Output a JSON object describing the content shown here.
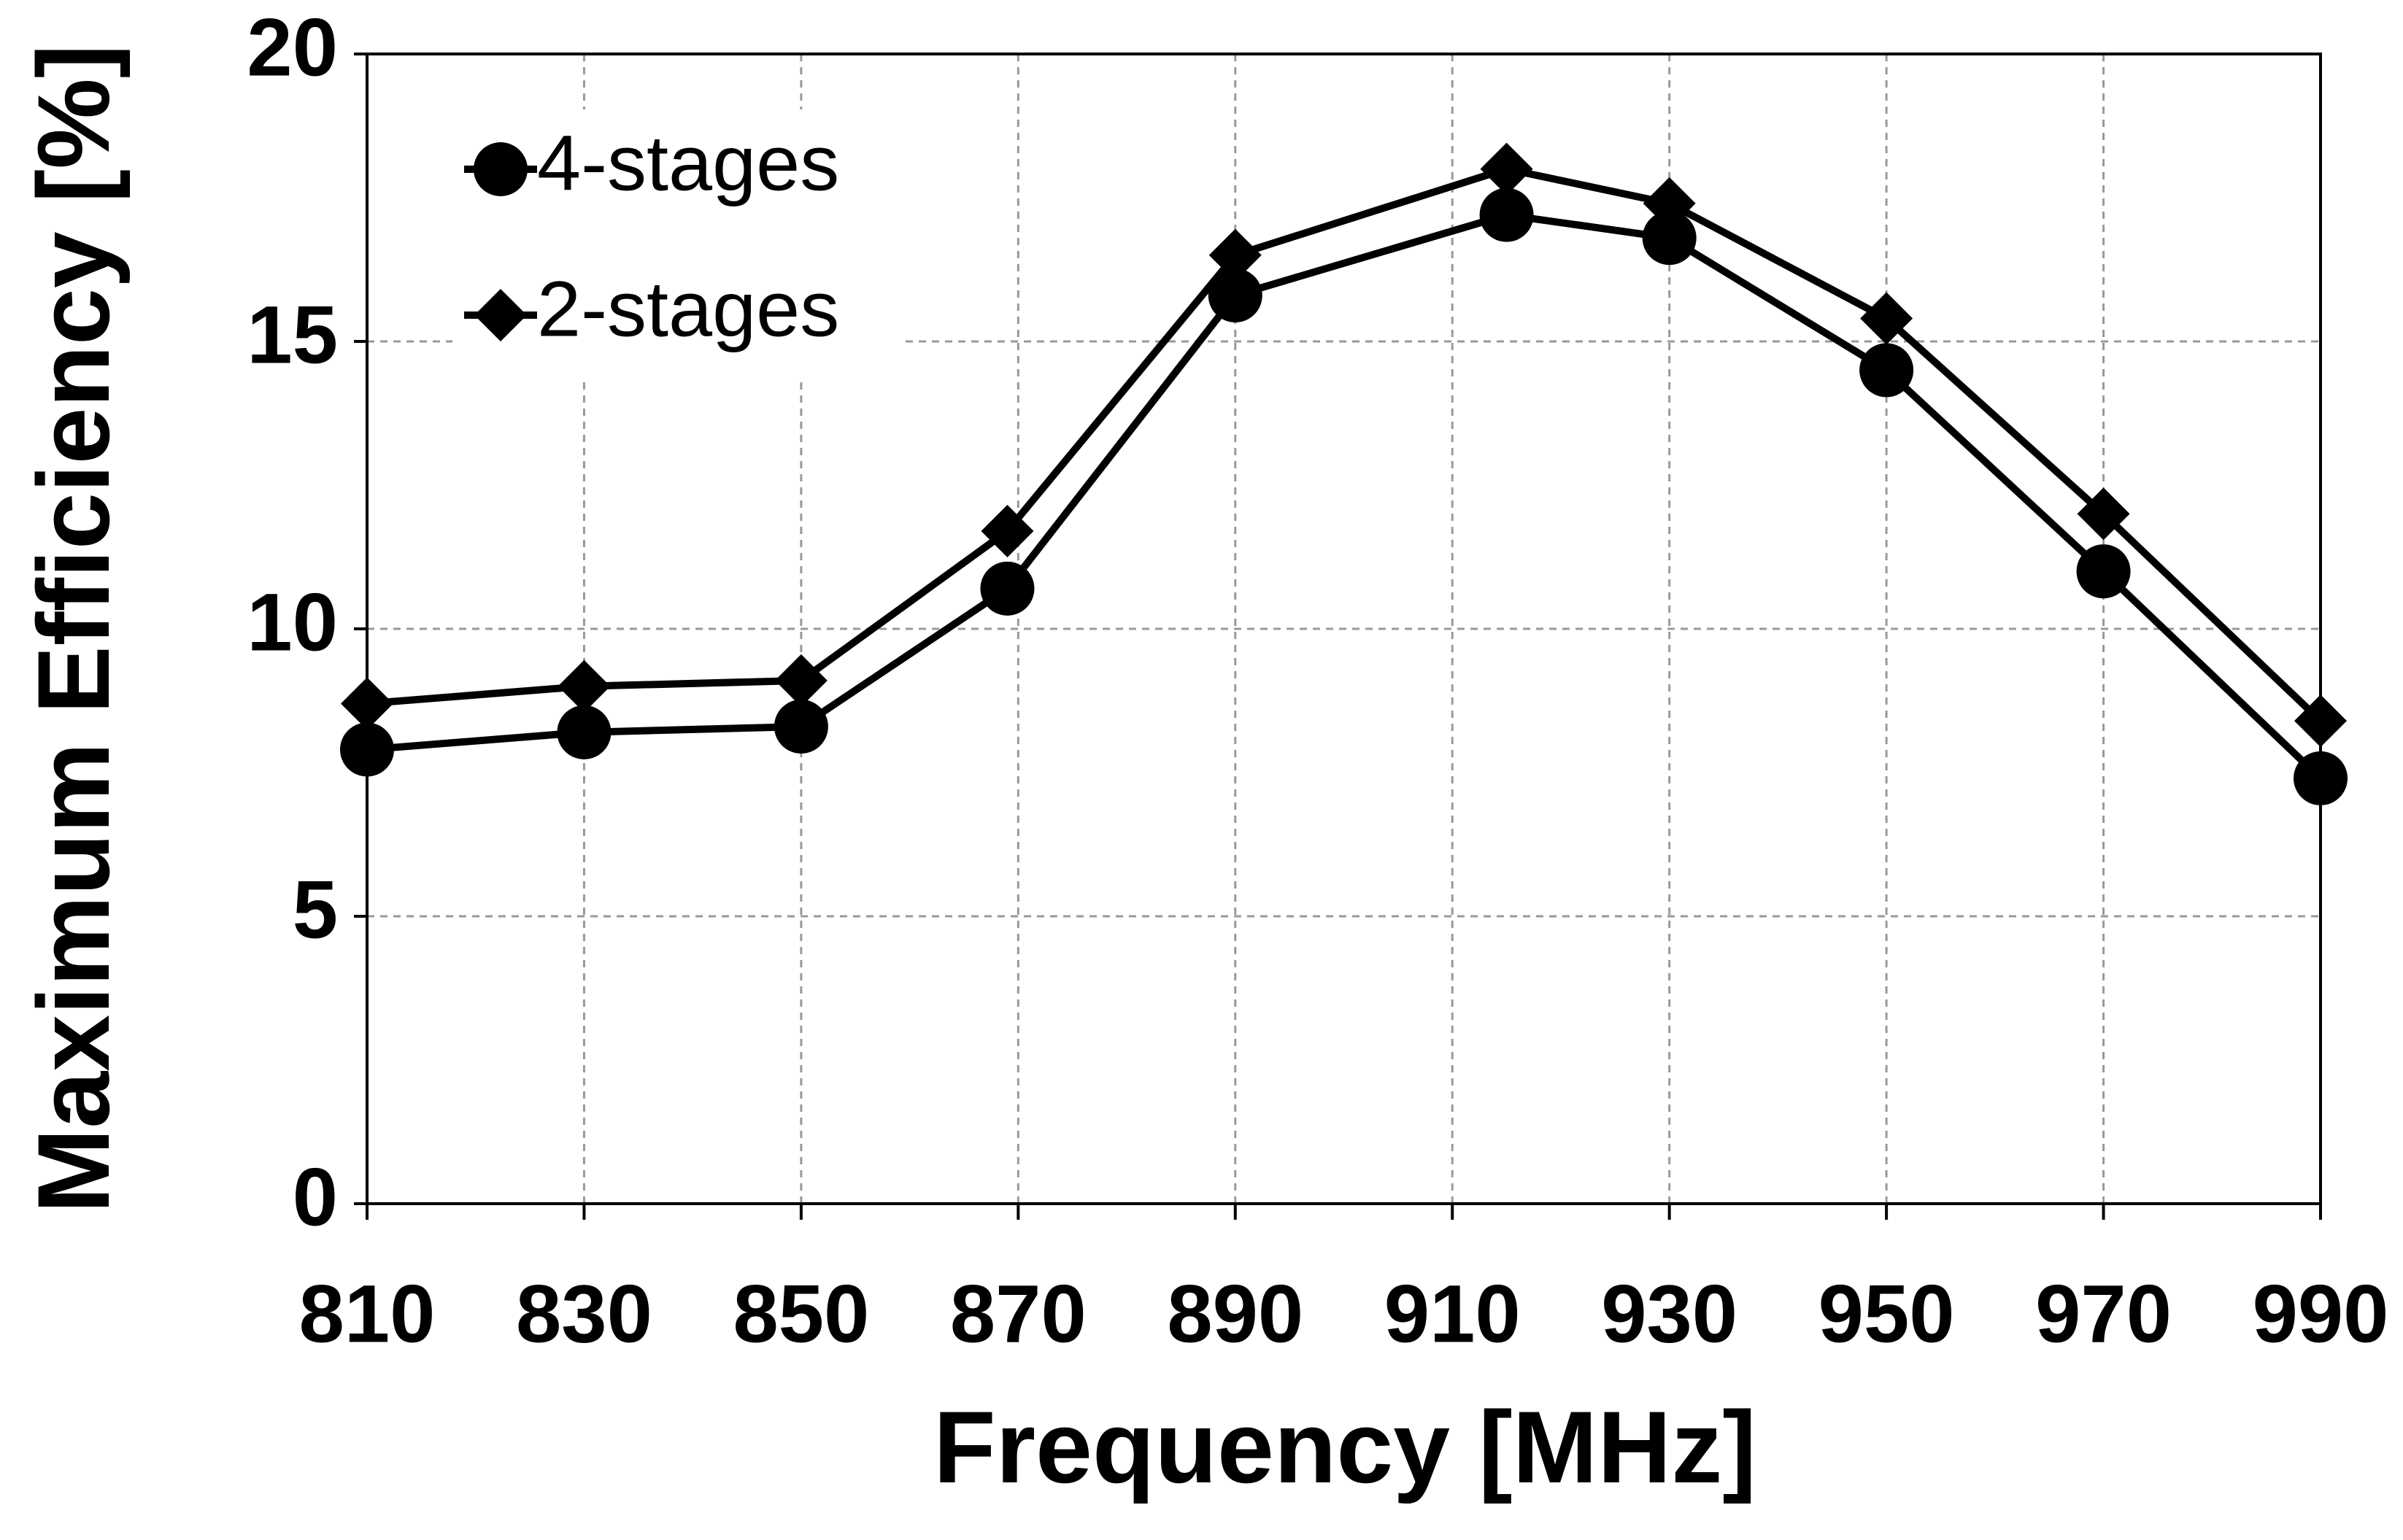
{
  "chart_data": {
    "type": "line",
    "x_label": "Frequency [MHz]",
    "y_label": "Maximum Efficiency [%]",
    "x": [
      810,
      830,
      850,
      869,
      890,
      915,
      930,
      950,
      970,
      990
    ],
    "series": [
      {
        "name": "4-stages",
        "color": "#000000",
        "marker": "circle",
        "values": [
          7.9,
          8.2,
          8.3,
          10.7,
          15.8,
          17.2,
          16.8,
          14.5,
          11.0,
          7.4
        ]
      },
      {
        "name": "2-stages",
        "color": "#000000",
        "marker": "diamond",
        "values": [
          8.7,
          9.0,
          9.1,
          11.7,
          16.5,
          18.0,
          17.4,
          15.4,
          12.0,
          8.4
        ]
      }
    ],
    "xlim": [
      810,
      990
    ],
    "xticks": [
      810,
      830,
      850,
      870,
      890,
      910,
      930,
      950,
      970,
      990
    ],
    "ylim": [
      0,
      20
    ],
    "yticks": [
      0,
      5,
      10,
      15,
      20
    ],
    "grid": true,
    "legend": "upper left"
  }
}
